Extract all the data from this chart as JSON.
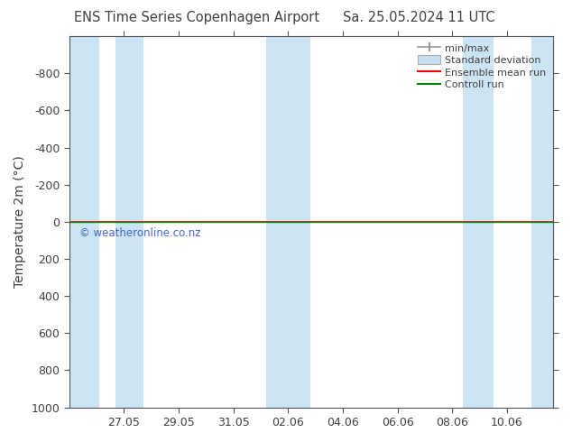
{
  "title_left": "ENS Time Series Copenhagen Airport",
  "title_right": "Sa. 25.05.2024 11 UTC",
  "ylabel": "Temperature 2m (°C)",
  "watermark": "© weatheronline.co.nz",
  "ylim_bottom": 1000,
  "ylim_top": -1000,
  "yticks": [
    -800,
    -600,
    -400,
    -200,
    0,
    200,
    400,
    600,
    800,
    1000
  ],
  "xtick_labels": [
    "27.05",
    "29.05",
    "31.05",
    "02.06",
    "04.06",
    "06.06",
    "08.06",
    "10.06"
  ],
  "xtick_positions": [
    1,
    2,
    3,
    4,
    5,
    6,
    7,
    8
  ],
  "xlim": [
    0.0,
    8.85
  ],
  "shaded_regions": [
    [
      0.0,
      0.55
    ],
    [
      0.85,
      1.35
    ],
    [
      3.6,
      4.4
    ],
    [
      7.2,
      7.75
    ],
    [
      8.45,
      8.85
    ]
  ],
  "horizontal_line_y": 0,
  "line_red_color": "#ff0000",
  "line_green_color": "#008000",
  "bg_color": "#ffffff",
  "plot_bg_color": "#ffffff",
  "border_color": "#555555",
  "font_color": "#404040",
  "tick_color": "#555555",
  "shaded_color": "#cce5f5",
  "shaded_alpha": 1.0,
  "legend_items": [
    {
      "label": "min/max",
      "type": "errorbar",
      "color": "#999999"
    },
    {
      "label": "Standard deviation",
      "type": "patch",
      "color": "#c8dff0"
    },
    {
      "label": "Ensemble mean run",
      "type": "line",
      "color": "#ff0000"
    },
    {
      "label": "Controll run",
      "type": "line",
      "color": "#008000"
    }
  ]
}
